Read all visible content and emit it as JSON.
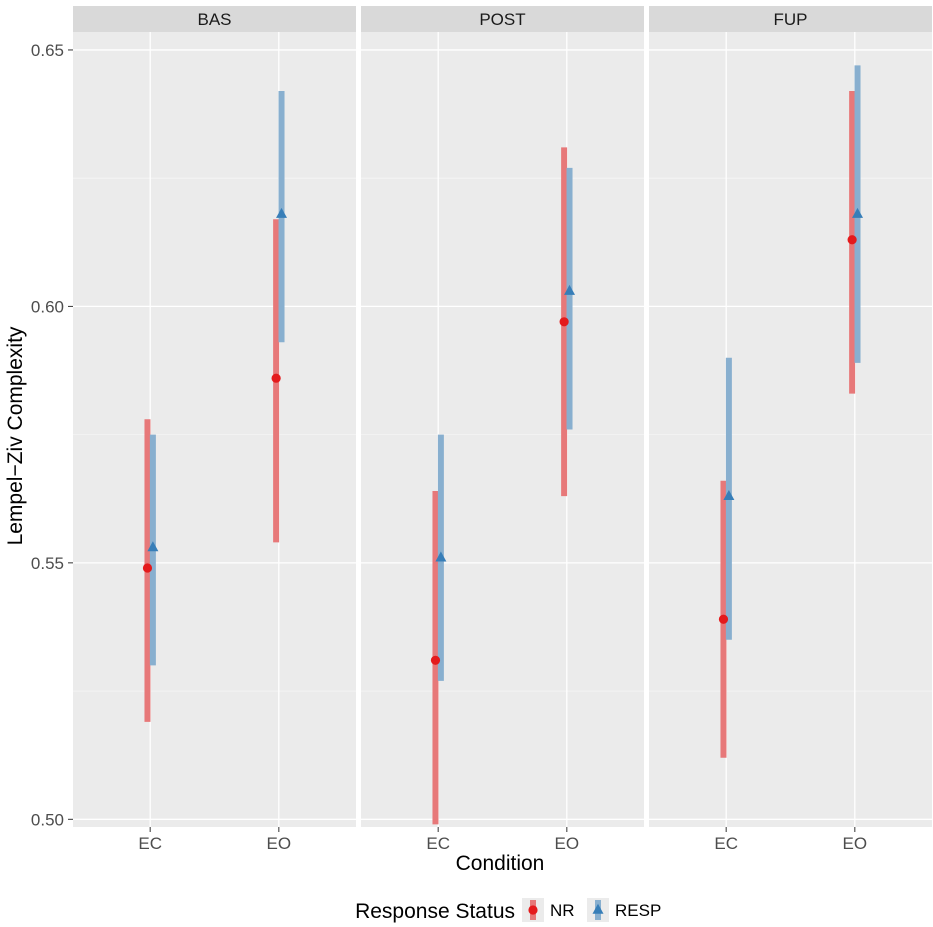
{
  "chart_data": {
    "type": "scatter",
    "subtype": "point-range",
    "facets": [
      "BAS",
      "POST",
      "FUP"
    ],
    "categories": [
      "EC",
      "EO"
    ],
    "xlabel": "Condition",
    "ylabel": "Lempel−Ziv Complexity",
    "ylim": [
      0.4985,
      0.6535
    ],
    "yticks": [
      0.5,
      0.55,
      0.6,
      0.65
    ],
    "ytick_labels": [
      "0.50",
      "0.55",
      "0.60",
      "0.65"
    ],
    "grid": true,
    "legend": {
      "title": "Response Status",
      "position": "bottom"
    },
    "series": [
      {
        "name": "NR",
        "color": "#E41A1C",
        "shape": "circle",
        "data": {
          "BAS": [
            {
              "x": "EC",
              "y": 0.549,
              "low": 0.519,
              "high": 0.578
            },
            {
              "x": "EO",
              "y": 0.586,
              "low": 0.554,
              "high": 0.617
            }
          ],
          "POST": [
            {
              "x": "EC",
              "y": 0.531,
              "low": 0.499,
              "high": 0.564
            },
            {
              "x": "EO",
              "y": 0.597,
              "low": 0.563,
              "high": 0.631
            }
          ],
          "FUP": [
            {
              "x": "EC",
              "y": 0.539,
              "low": 0.512,
              "high": 0.566
            },
            {
              "x": "EO",
              "y": 0.613,
              "low": 0.583,
              "high": 0.642
            }
          ]
        }
      },
      {
        "name": "RESP",
        "color": "#377EB8",
        "shape": "triangle",
        "data": {
          "BAS": [
            {
              "x": "EC",
              "y": 0.553,
              "low": 0.53,
              "high": 0.575
            },
            {
              "x": "EO",
              "y": 0.618,
              "low": 0.593,
              "high": 0.642
            }
          ],
          "POST": [
            {
              "x": "EC",
              "y": 0.551,
              "low": 0.527,
              "high": 0.575
            },
            {
              "x": "EO",
              "y": 0.603,
              "low": 0.576,
              "high": 0.627
            }
          ],
          "FUP": [
            {
              "x": "EC",
              "y": 0.563,
              "low": 0.535,
              "high": 0.59
            },
            {
              "x": "EO",
              "y": 0.618,
              "low": 0.589,
              "high": 0.647
            }
          ]
        }
      }
    ]
  }
}
